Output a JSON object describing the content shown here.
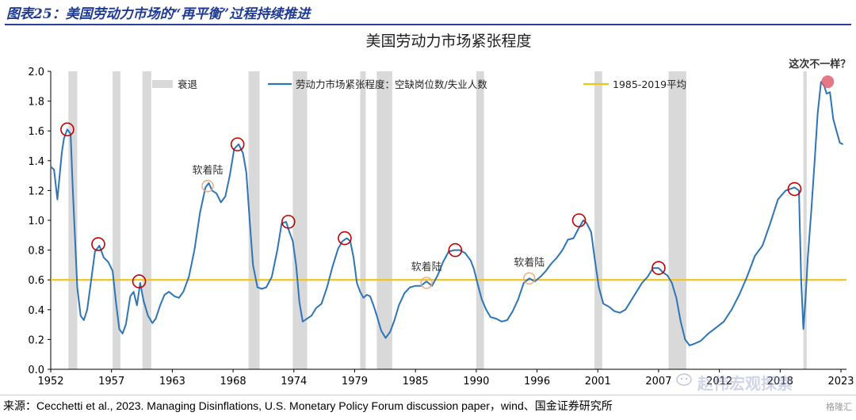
{
  "figure_title": "图表25：美国劳动力市场的“再平衡”过程持续推进",
  "source": "来源：Cecchetti et al., 2023. Managing Disinflations, U.S. Monetary Policy Forum discussion paper，wind、国金证券研究所",
  "watermark": "赵伟宏观探索",
  "watermark_corner": "格隆汇",
  "colors": {
    "series": "#2e75b6",
    "average": "#f0c419",
    "recession": "#d9d9d9",
    "circle": "#c00000",
    "soft_circle": "#e8a880",
    "highlight": "#e06070",
    "title": "#1f3a93"
  },
  "chart_data": {
    "type": "line",
    "title": "美国劳动力市场紧张程度",
    "xlabel": "",
    "ylabel": "",
    "xlim": [
      1952,
      2024
    ],
    "ylim": [
      0,
      2.0
    ],
    "y_ticks": [
      "0.0",
      "0.2",
      "0.4",
      "0.6",
      "0.8",
      "1.0",
      "1.2",
      "1.4",
      "1.6",
      "1.8",
      "2.0"
    ],
    "x_ticks": [
      {
        "v": 1952,
        "label": "1952"
      },
      {
        "v": 1957.5,
        "label": "1957"
      },
      {
        "v": 1963,
        "label": "1963"
      },
      {
        "v": 1968.5,
        "label": "1968"
      },
      {
        "v": 1974,
        "label": "1974"
      },
      {
        "v": 1979.5,
        "label": "1979"
      },
      {
        "v": 1985,
        "label": "1985"
      },
      {
        "v": 1990.5,
        "label": "1990"
      },
      {
        "v": 1996,
        "label": "1996"
      },
      {
        "v": 2001.5,
        "label": "2001"
      },
      {
        "v": 2007,
        "label": "2007"
      },
      {
        "v": 2012.5,
        "label": "2012"
      },
      {
        "v": 2018,
        "label": "2018"
      },
      {
        "v": 2023.5,
        "label": "2023"
      }
    ],
    "grid": false,
    "legend": [
      "衰退",
      "劳动力市场紧张程度：空缺岗位数/失业人数",
      "1985-2019平均"
    ],
    "legend_position": "top",
    "average_value": 0.6,
    "recessions": [
      [
        1953.6,
        1954.4
      ],
      [
        1957.6,
        1958.3
      ],
      [
        1960.3,
        1961.1
      ],
      [
        1969.9,
        1970.9
      ],
      [
        1973.9,
        1975.2
      ],
      [
        1980.0,
        1980.5
      ],
      [
        1981.5,
        1982.9
      ],
      [
        1990.5,
        1991.2
      ],
      [
        2001.2,
        2001.9
      ],
      [
        2007.9,
        2009.5
      ],
      [
        2020.1,
        2020.4
      ]
    ],
    "series": [
      {
        "name": "劳动力市场紧张程度：空缺岗位数/失业人数",
        "x": [
          1952.0,
          1952.3,
          1952.6,
          1953.0,
          1953.2,
          1953.5,
          1953.8,
          1954.0,
          1954.4,
          1954.7,
          1955.0,
          1955.3,
          1955.7,
          1956.0,
          1956.4,
          1956.8,
          1957.2,
          1957.6,
          1957.9,
          1958.2,
          1958.5,
          1958.8,
          1959.2,
          1959.5,
          1959.8,
          1960.1,
          1960.4,
          1960.8,
          1961.2,
          1961.5,
          1961.9,
          1962.3,
          1962.7,
          1963.2,
          1963.6,
          1964.0,
          1964.5,
          1965.0,
          1965.5,
          1966.0,
          1966.3,
          1966.6,
          1967.0,
          1967.4,
          1967.8,
          1968.2,
          1968.6,
          1969.0,
          1969.4,
          1969.7,
          1970.0,
          1970.3,
          1970.7,
          1971.1,
          1971.5,
          1972.0,
          1972.5,
          1972.9,
          1973.3,
          1973.6,
          1973.9,
          1974.2,
          1974.5,
          1974.8,
          1975.2,
          1975.6,
          1976.0,
          1976.5,
          1977.0,
          1977.5,
          1978.0,
          1978.4,
          1978.8,
          1979.1,
          1979.4,
          1979.7,
          1980.0,
          1980.3,
          1980.6,
          1980.9,
          1981.2,
          1981.5,
          1981.9,
          1982.3,
          1982.7,
          1983.1,
          1983.5,
          1984.0,
          1984.5,
          1985.0,
          1985.5,
          1986.0,
          1986.5,
          1987.0,
          1987.5,
          1988.0,
          1988.5,
          1989.0,
          1989.5,
          1990.0,
          1990.3,
          1990.6,
          1991.0,
          1991.4,
          1991.8,
          1992.3,
          1992.8,
          1993.3,
          1993.8,
          1994.3,
          1994.8,
          1995.3,
          1995.8,
          1996.3,
          1996.8,
          1997.3,
          1997.8,
          1998.3,
          1998.8,
          1999.3,
          1999.8,
          2000.2,
          2000.5,
          2000.9,
          2001.2,
          2001.6,
          2002.0,
          2002.5,
          2003.0,
          2003.5,
          2004.0,
          2004.5,
          2005.0,
          2005.5,
          2006.0,
          2006.5,
          2007.0,
          2007.4,
          2007.8,
          2008.2,
          2008.6,
          2009.0,
          2009.4,
          2009.8,
          2010.2,
          2010.8,
          2011.5,
          2012.2,
          2012.9,
          2013.6,
          2014.3,
          2015.0,
          2015.7,
          2016.4,
          2017.1,
          2017.8,
          2018.5,
          2018.9,
          2019.3,
          2019.7,
          2019.9,
          2020.1,
          2020.3,
          2020.5,
          2020.8,
          2021.1,
          2021.4,
          2021.7,
          2022.0,
          2022.2,
          2022.5,
          2022.8,
          2023.1,
          2023.4,
          2023.7
        ],
        "values": [
          1.36,
          1.34,
          1.14,
          1.45,
          1.55,
          1.61,
          1.58,
          1.2,
          0.55,
          0.36,
          0.33,
          0.4,
          0.62,
          0.79,
          0.83,
          0.75,
          0.72,
          0.66,
          0.45,
          0.27,
          0.24,
          0.3,
          0.49,
          0.52,
          0.43,
          0.58,
          0.46,
          0.36,
          0.31,
          0.34,
          0.43,
          0.5,
          0.52,
          0.49,
          0.48,
          0.52,
          0.62,
          0.8,
          1.05,
          1.22,
          1.25,
          1.2,
          1.18,
          1.12,
          1.16,
          1.3,
          1.48,
          1.51,
          1.45,
          1.32,
          1.0,
          0.7,
          0.55,
          0.54,
          0.55,
          0.62,
          0.8,
          0.98,
          0.99,
          0.92,
          0.86,
          0.7,
          0.45,
          0.32,
          0.34,
          0.36,
          0.41,
          0.44,
          0.55,
          0.69,
          0.81,
          0.86,
          0.88,
          0.86,
          0.75,
          0.58,
          0.52,
          0.48,
          0.5,
          0.49,
          0.43,
          0.36,
          0.26,
          0.21,
          0.25,
          0.33,
          0.43,
          0.51,
          0.55,
          0.56,
          0.56,
          0.59,
          0.56,
          0.63,
          0.72,
          0.79,
          0.8,
          0.8,
          0.78,
          0.73,
          0.67,
          0.58,
          0.47,
          0.4,
          0.35,
          0.34,
          0.32,
          0.33,
          0.39,
          0.47,
          0.58,
          0.61,
          0.59,
          0.62,
          0.66,
          0.71,
          0.75,
          0.8,
          0.87,
          0.88,
          0.95,
          1.0,
          0.98,
          0.92,
          0.75,
          0.55,
          0.44,
          0.42,
          0.39,
          0.38,
          0.4,
          0.46,
          0.52,
          0.58,
          0.62,
          0.68,
          0.68,
          0.65,
          0.63,
          0.58,
          0.48,
          0.32,
          0.2,
          0.16,
          0.17,
          0.19,
          0.24,
          0.28,
          0.32,
          0.4,
          0.5,
          0.62,
          0.76,
          0.83,
          0.98,
          1.14,
          1.2,
          1.21,
          1.22,
          1.2,
          0.6,
          0.27,
          0.48,
          0.75,
          1.05,
          1.38,
          1.72,
          1.93,
          1.9,
          1.85,
          1.86,
          1.68,
          1.6,
          1.52,
          1.51
        ]
      }
    ],
    "annotations": [
      {
        "text": "软着陆",
        "x": 1966.2,
        "y": 1.23
      },
      {
        "text": "软着陆",
        "x": 1986.0,
        "y": 0.58
      },
      {
        "text": "软着陆",
        "x": 1995.3,
        "y": 0.61
      },
      {
        "text": "这次不一样？",
        "x": 2022.3,
        "y": 1.93
      }
    ],
    "peak_markers": [
      [
        1953.5,
        1.61
      ],
      [
        1956.3,
        0.84
      ],
      [
        1960.0,
        0.59
      ],
      [
        1968.9,
        1.51
      ],
      [
        1973.5,
        0.99
      ],
      [
        1978.6,
        0.88
      ],
      [
        1988.6,
        0.8
      ],
      [
        1999.8,
        1.0
      ],
      [
        2007.0,
        0.68
      ],
      [
        2019.3,
        1.21
      ]
    ],
    "soft_landing_markers": [
      [
        1966.2,
        1.23
      ],
      [
        1986.0,
        0.58
      ],
      [
        1995.3,
        0.61
      ]
    ],
    "highlight_marker": [
      2022.3,
      1.93
    ]
  }
}
